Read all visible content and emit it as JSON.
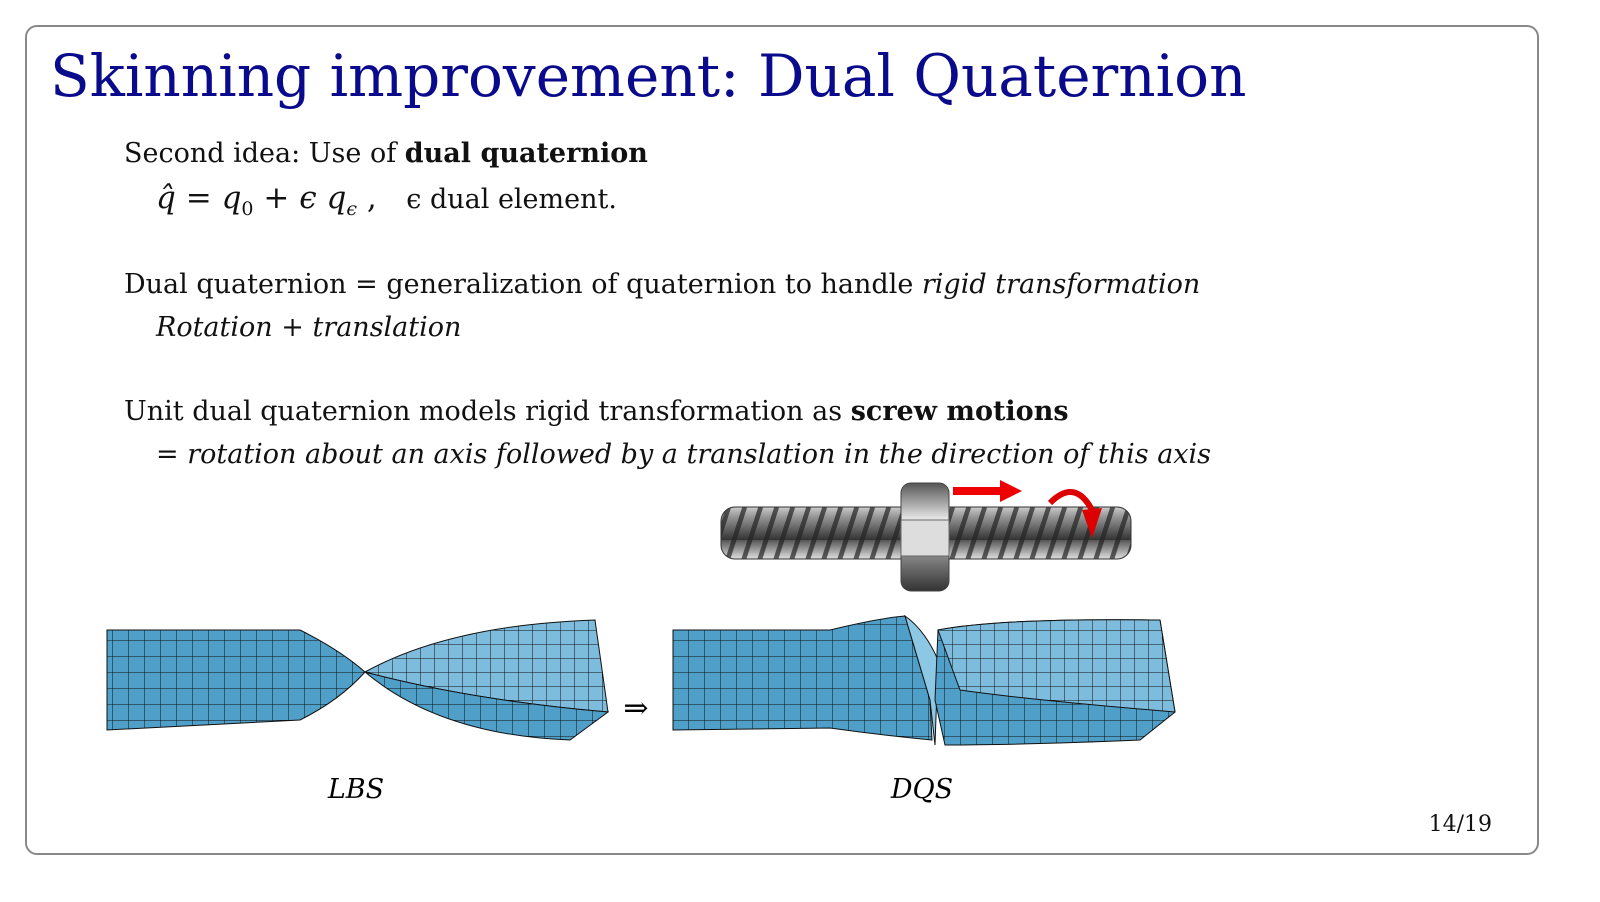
{
  "title": "Skinning improvement: Dual Quaternion",
  "idea": {
    "text": "Second idea: Use of ",
    "emphasis": "dual quaternion"
  },
  "formula": [
    "q̂",
    "=",
    "q",
    "0",
    "+",
    "ϵ",
    "q",
    "ϵ",
    ",",
    "ϵ dual element."
  ],
  "definition": {
    "text": "Dual quaternion = generalization of quaternion to handle ",
    "emphasis": "rigid transformation",
    "detail": "Rotation + translation"
  },
  "screw": {
    "text": "Unit dual quaternion models rigid transformation as ",
    "emphasis": "screw motions",
    "detail": "= rotation about an axis followed by a translation in the direction of this axis"
  },
  "figure": {
    "left_label": "LBS",
    "arrow": "⇒",
    "right_label": "DQS"
  },
  "page_number": "14/19"
}
